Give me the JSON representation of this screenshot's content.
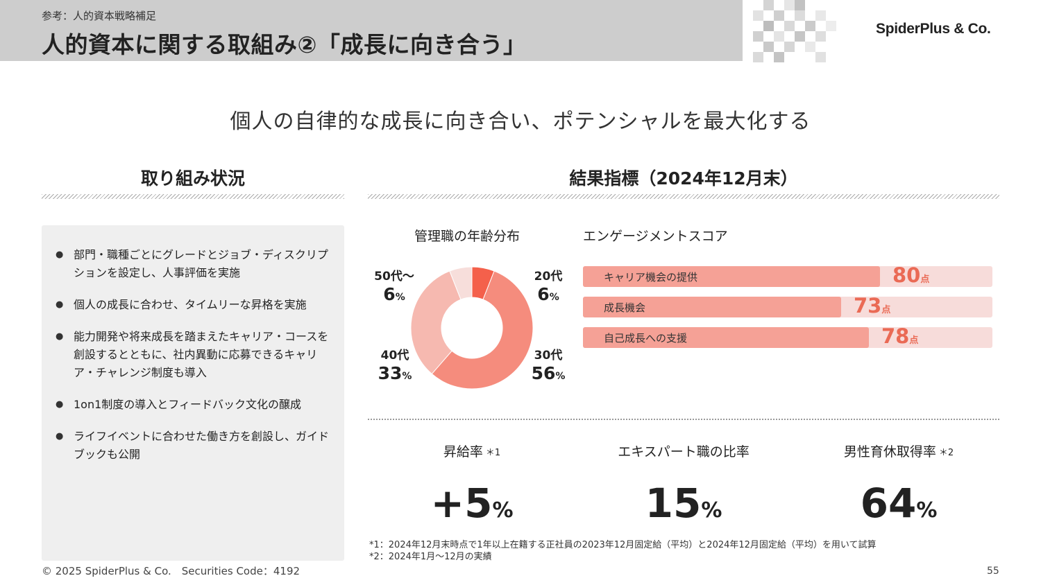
{
  "header": {
    "subtitle": "参考：人的資本戦略補足",
    "title": "人的資本に関する取組み②「成長に向き合う」",
    "logo_text": "SpiderPlus & Co."
  },
  "tagline": "個人の自律的な成長に向き合い、ポテンシャルを最大化する",
  "left_section": {
    "title": "取り組み状況",
    "bullets": [
      "部門・職種ごとにグレードとジョブ・ディスクリプションを設定し、人事評価を実施",
      "個人の成長に合わせ、タイムリーな昇格を実施",
      "能力開発や将来成長を踏まえたキャリア・コースを創設するとともに、社内異動に応募できるキャリア・チャレンジ制度も導入",
      "1on1制度の導入とフィードバック文化の醸成",
      "ライフイベントに合わせた働き方を創設し、ガイドブックも公開"
    ]
  },
  "right_section": {
    "title": "結果指標（2024年12月末）"
  },
  "chart_data": [
    {
      "type": "pie",
      "title": "管理職の年齢分布",
      "categories": [
        "20代",
        "30代",
        "40代",
        "50代～"
      ],
      "values": [
        6,
        56,
        33,
        6
      ],
      "unit": "%",
      "colors": [
        "#f4604b",
        "#f58c7d",
        "#f6b9b0",
        "#f7dedb"
      ]
    },
    {
      "type": "bar",
      "title": "エンゲージメントスコア",
      "categories": [
        "キャリア機会の提供",
        "成長機会",
        "自己成長への支援"
      ],
      "values": [
        80,
        73,
        78
      ],
      "unit": "点",
      "ylim": [
        0,
        100
      ]
    }
  ],
  "kpis": [
    {
      "label": "昇給率",
      "note_mark": "＊1",
      "value": "+5",
      "unit": "%"
    },
    {
      "label": "エキスパート職の比率",
      "note_mark": "",
      "value": "15",
      "unit": "%"
    },
    {
      "label": "男性育休取得率",
      "note_mark": "＊2",
      "value": "64",
      "unit": "%"
    }
  ],
  "notes": [
    "*1：2024年12月末時点で1年以上在籍する正社員の2023年12月固定給（平均）と2024年12月固定給（平均）を用いて試算",
    "*2：2024年1月～12月の実績"
  ],
  "footer": {
    "copyright": "© 2025 SpiderPlus & Co.　Securities Code：4192",
    "page_number": "55"
  },
  "colors": {
    "accent": "#ea6a55",
    "bar_fill": "#f5a196",
    "bar_track": "#f7dcda",
    "header_band": "#cdcdcd"
  }
}
